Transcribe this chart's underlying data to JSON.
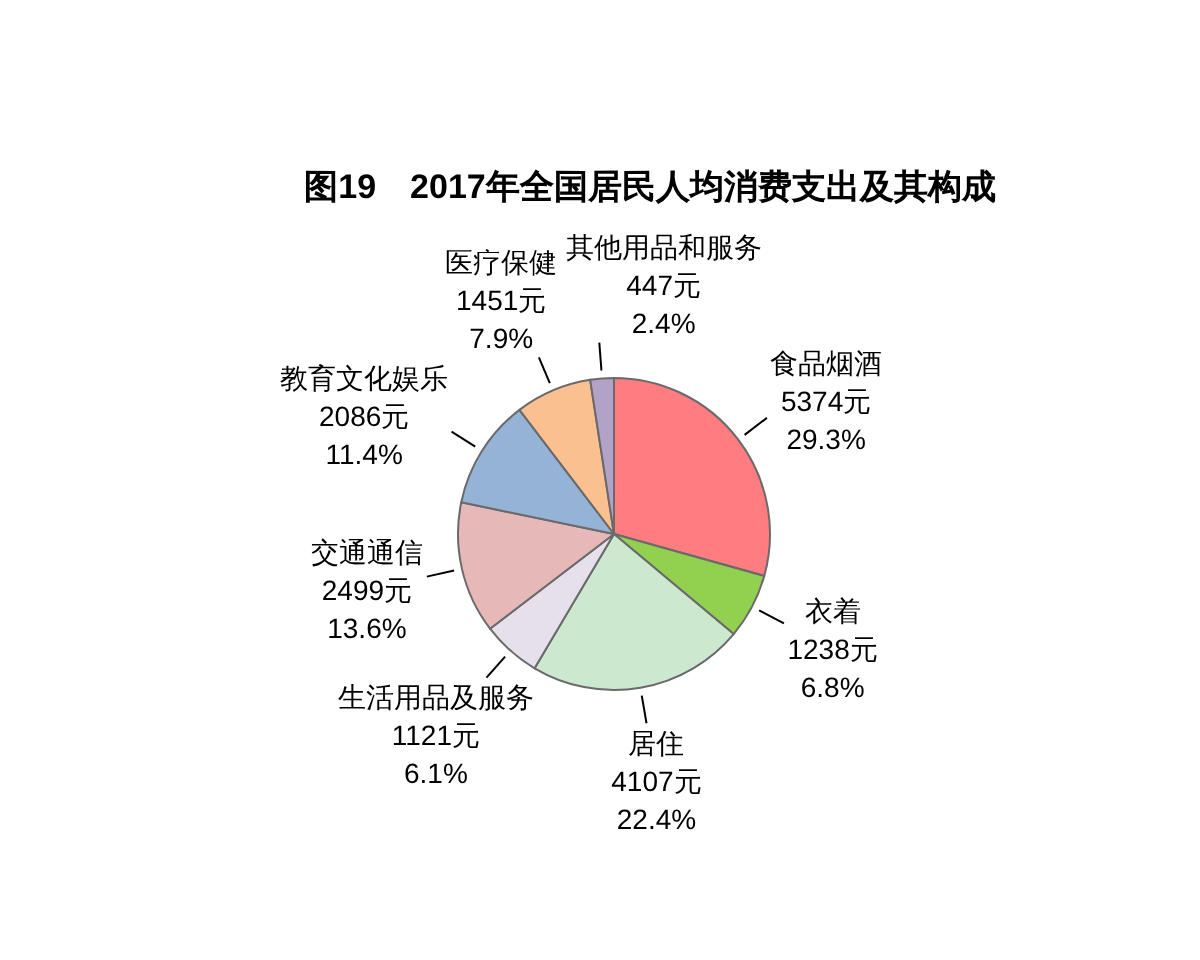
{
  "chart_data": {
    "type": "pie",
    "title": "图19　2017年全国居民人均消费支出及其构成",
    "categories": [
      "食品烟酒",
      "衣着",
      "居住",
      "生活用品及服务",
      "交通通信",
      "教育文化娱乐",
      "医疗保健",
      "其他用品和服务"
    ],
    "values": [
      5374,
      1238,
      4107,
      1121,
      2499,
      2086,
      1451,
      447
    ],
    "colors": [
      "#ff7c80",
      "#92d050",
      "#cce8cf",
      "#e6e0ec",
      "#e6b9b8",
      "#95b3d7",
      "#fac090",
      "#b3a2c7"
    ],
    "value_labels": [
      "5374元\n29.3%",
      "1238元\n6.8%",
      "4107元\n22.4%",
      "1121元\n6.1%",
      "2499元\n13.6%",
      "2086元\n11.4%",
      "1451元\n7.9%",
      "447元\n2.4%"
    ]
  }
}
